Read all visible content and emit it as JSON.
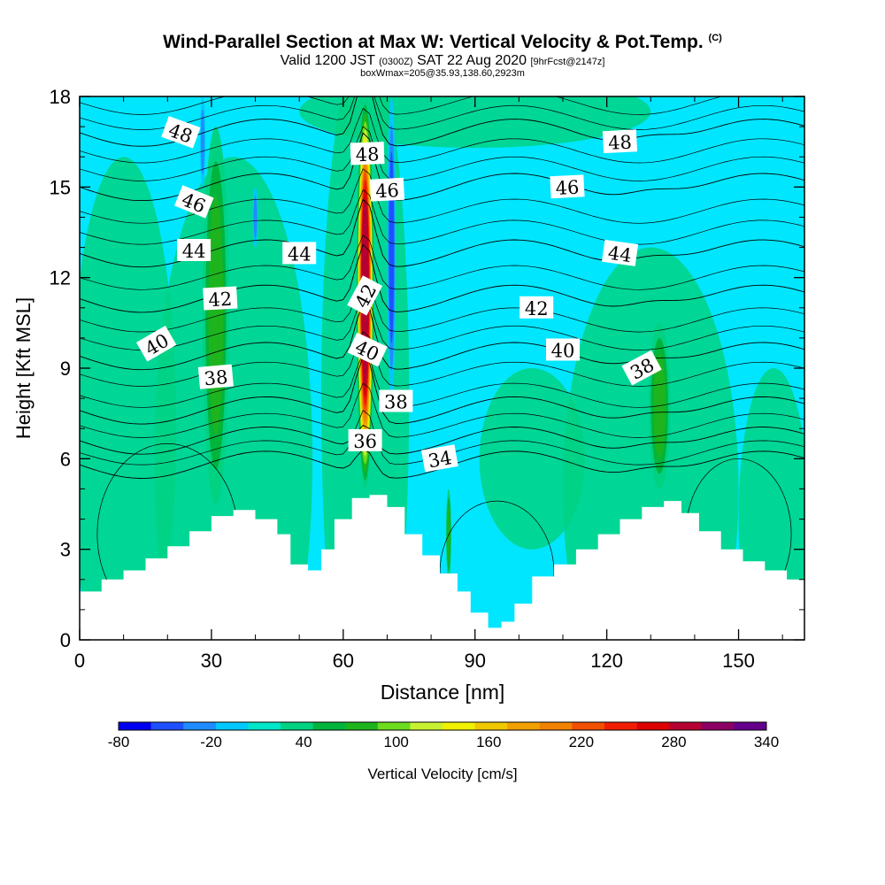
{
  "title": {
    "main": "Wind-Parallel Section at Max W: Vertical Velocity & Pot.Temp.",
    "copyright": "(C)",
    "valid_prefix": "Valid 1200 JST",
    "valid_z": "(0300Z)",
    "valid_date": "SAT 22 Aug 2020",
    "fcst": "[9hrFcst@2147z]",
    "box": "boxWmax=205@35.93,138.60,2923m"
  },
  "chart_data": {
    "type": "heatmap",
    "xlabel": "Distance [nm]",
    "ylabel": "Height [Kft MSL]",
    "xlim": [
      0,
      165
    ],
    "ylim": [
      0,
      18
    ],
    "xticks": [
      0,
      30,
      60,
      90,
      120,
      150
    ],
    "yticks": [
      0,
      3,
      6,
      9,
      12,
      15,
      18
    ],
    "colorbar": {
      "label": "Vertical Velocity [cm/s]",
      "min": -80,
      "max": 340,
      "step": 20,
      "tick_labels": [
        "-80",
        "-20",
        "40",
        "100",
        "160",
        "220",
        "280",
        "340"
      ],
      "tick_values": [
        -80,
        -20,
        40,
        100,
        160,
        220,
        280,
        340
      ],
      "colors": [
        "#0000f0",
        "#1e50ff",
        "#1e8cff",
        "#00c8ff",
        "#00e6c8",
        "#00d282",
        "#00b43c",
        "#1eb41e",
        "#6edc1e",
        "#c8f032",
        "#f0f000",
        "#f0c800",
        "#f0a000",
        "#f08200",
        "#f05000",
        "#f01e00",
        "#dc0000",
        "#b40032",
        "#8c0064",
        "#64008c"
      ],
      "background_color": "#00e6ff"
    },
    "terrain": [
      [
        0,
        1.6
      ],
      [
        5,
        2.0
      ],
      [
        10,
        2.3
      ],
      [
        15,
        2.7
      ],
      [
        20,
        3.1
      ],
      [
        25,
        3.6
      ],
      [
        30,
        4.1
      ],
      [
        35,
        4.3
      ],
      [
        40,
        4.0
      ],
      [
        45,
        3.5
      ],
      [
        48,
        2.5
      ],
      [
        52,
        2.3
      ],
      [
        55,
        3.0
      ],
      [
        58,
        4.0
      ],
      [
        62,
        4.7
      ],
      [
        66,
        4.8
      ],
      [
        70,
        4.4
      ],
      [
        74,
        3.5
      ],
      [
        78,
        2.8
      ],
      [
        82,
        2.2
      ],
      [
        86,
        1.6
      ],
      [
        89,
        0.9
      ],
      [
        93,
        0.4
      ],
      [
        96,
        0.6
      ],
      [
        99,
        1.2
      ],
      [
        103,
        2.1
      ],
      [
        108,
        2.5
      ],
      [
        113,
        3.0
      ],
      [
        118,
        3.5
      ],
      [
        123,
        4.0
      ],
      [
        128,
        4.4
      ],
      [
        133,
        4.6
      ],
      [
        137,
        4.2
      ],
      [
        141,
        3.6
      ],
      [
        146,
        3.0
      ],
      [
        151,
        2.6
      ],
      [
        156,
        2.3
      ],
      [
        161,
        2.0
      ],
      [
        165,
        1.9
      ]
    ],
    "w_features": [
      {
        "x": 65,
        "ylo": 5.0,
        "yhi": 18.0,
        "halfwidth": 2.0,
        "value": 260
      },
      {
        "x": 71,
        "ylo": 8.0,
        "yhi": 18.0,
        "halfwidth": 1.0,
        "value": -60
      },
      {
        "x": 31,
        "ylo": 4.5,
        "yhi": 17.0,
        "halfwidth": 3.0,
        "value": 60
      },
      {
        "x": 132,
        "ylo": 5.0,
        "yhi": 10.5,
        "halfwidth": 2.5,
        "value": 60
      },
      {
        "x": 28,
        "ylo": 15.0,
        "yhi": 18.0,
        "halfwidth": 0.6,
        "value": -40
      },
      {
        "x": 40,
        "ylo": 13.0,
        "yhi": 15.0,
        "halfwidth": 0.6,
        "value": -40
      },
      {
        "x": 84,
        "ylo": 2.0,
        "yhi": 5.0,
        "halfwidth": 0.6,
        "value": 60
      }
    ],
    "isentropes": [
      {
        "theta": 34,
        "label": "34",
        "base": 5.8
      },
      {
        "theta": 36,
        "label": "36",
        "base": 6.6
      },
      {
        "theta": 38,
        "label": "38",
        "base": 7.6
      },
      {
        "theta": 40,
        "label": "40",
        "base": 9.4
      },
      {
        "theta": 42,
        "label": "42",
        "base": 11.3
      },
      {
        "theta": 44,
        "label": "44",
        "base": 12.8
      },
      {
        "theta": 46,
        "label": "46",
        "base": 15.0
      },
      {
        "theta": 48,
        "label": "48",
        "base": 16.8
      }
    ],
    "contour_labels": [
      {
        "text": "48",
        "x": 23,
        "y": 16.8,
        "angle": 20
      },
      {
        "text": "48",
        "x": 65.5,
        "y": 16.1,
        "angle": -2
      },
      {
        "text": "48",
        "x": 123,
        "y": 16.5,
        "angle": -3
      },
      {
        "text": "46",
        "x": 26,
        "y": 14.5,
        "angle": 22
      },
      {
        "text": "46",
        "x": 70,
        "y": 14.9,
        "angle": -3
      },
      {
        "text": "46",
        "x": 111,
        "y": 15.0,
        "angle": -3
      },
      {
        "text": "44",
        "x": 26,
        "y": 12.9,
        "angle": 0
      },
      {
        "text": "44",
        "x": 50,
        "y": 12.8,
        "angle": 0
      },
      {
        "text": "44",
        "x": 123,
        "y": 12.8,
        "angle": 8
      },
      {
        "text": "42",
        "x": 32,
        "y": 11.3,
        "angle": -3
      },
      {
        "text": "42",
        "x": 65,
        "y": 11.4,
        "angle": -62
      },
      {
        "text": "42",
        "x": 104,
        "y": 11.0,
        "angle": 0
      },
      {
        "text": "40",
        "x": 17.5,
        "y": 9.8,
        "angle": -30
      },
      {
        "text": "40",
        "x": 65.5,
        "y": 9.6,
        "angle": 25
      },
      {
        "text": "40",
        "x": 110,
        "y": 9.6,
        "angle": 0
      },
      {
        "text": "38",
        "x": 31,
        "y": 8.7,
        "angle": -5
      },
      {
        "text": "38",
        "x": 72,
        "y": 7.9,
        "angle": 0
      },
      {
        "text": "38",
        "x": 128,
        "y": 9.0,
        "angle": -28
      },
      {
        "text": "36",
        "x": 65,
        "y": 6.6,
        "angle": 0
      },
      {
        "text": "34",
        "x": 82,
        "y": 6.0,
        "angle": -10
      }
    ]
  }
}
